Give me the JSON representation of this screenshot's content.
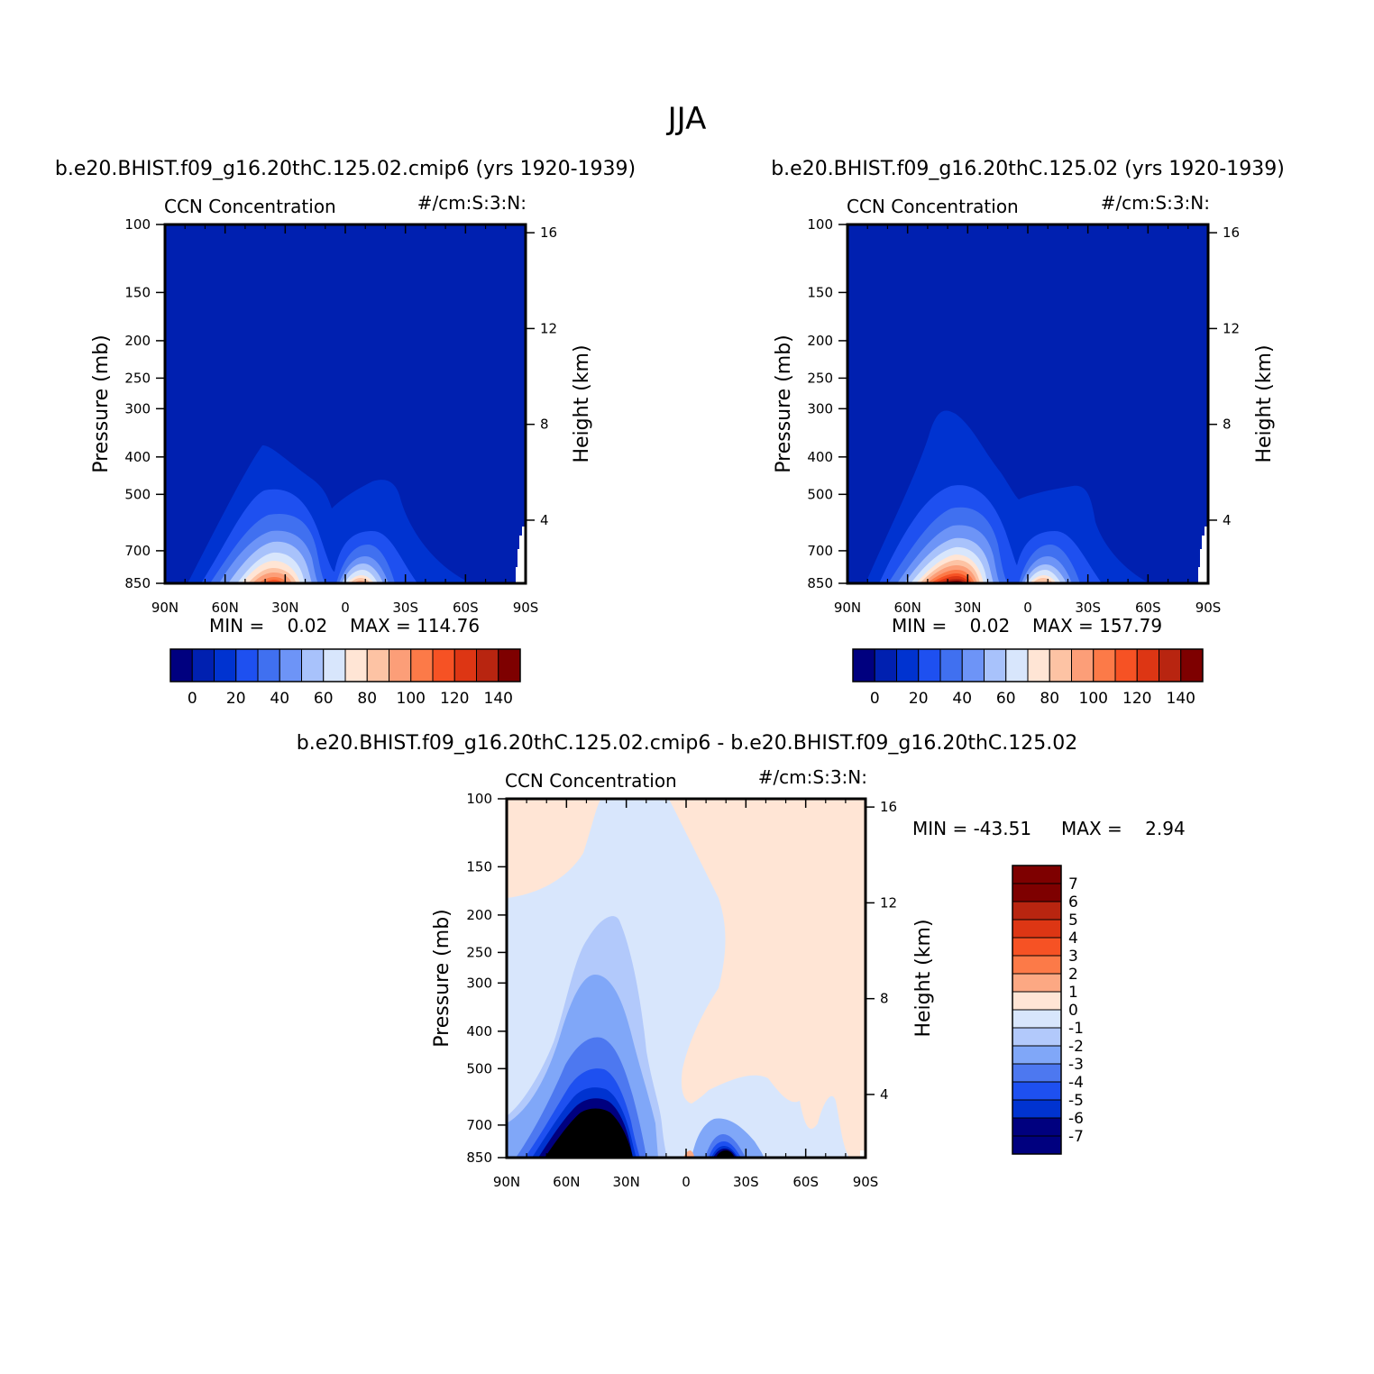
{
  "figure": {
    "title": "JJA"
  },
  "palettes": {
    "ccn": [
      "#00007f",
      "#0020b0",
      "#0033d0",
      "#1e50f0",
      "#4070f0",
      "#6d94f7",
      "#a8c2fb",
      "#d8e6fc",
      "#ffe5d5",
      "#fdc3a4",
      "#fc9e78",
      "#fc7a48",
      "#f65224",
      "#dd3614",
      "#b82510",
      "#7e0000"
    ],
    "diff": [
      "#7e0000",
      "#b82510",
      "#dd3614",
      "#f65224",
      "#fc7a48",
      "#fca883",
      "#ffe5d5",
      "#d8e6fc",
      "#b2c9fb",
      "#80a7f8",
      "#4d78f0",
      "#1e50f0",
      "#0033d0",
      "#00007f"
    ]
  },
  "chart_data": [
    {
      "type": "heatmap",
      "title": "b.e20.BHIST.f09_g16.20thC.125.02.cmip6 (yrs 1920-1939)",
      "left_label": "CCN Concentration",
      "right_label": "#/cm:S:3:N:",
      "xlabel": "",
      "ylabel": "Pressure (mb)",
      "ylabel_right": "Height (km)",
      "x_ticks": [
        "90N",
        "60N",
        "30N",
        "0",
        "30S",
        "60S",
        "90S"
      ],
      "y_ticks": [
        100,
        150,
        200,
        250,
        300,
        400,
        500,
        700,
        850
      ],
      "y_right_ticks": [
        16,
        12,
        8,
        4
      ],
      "y_scale": "log",
      "ylim": [
        100,
        850
      ],
      "min_text": "MIN =    0.02",
      "max_text": "MAX = 114.76",
      "min": 0.02,
      "max": 114.76,
      "colorbar": {
        "orientation": "horizontal",
        "tick_labels": [
          "0",
          "20",
          "40",
          "60",
          "80",
          "100",
          "120",
          "140"
        ]
      }
    },
    {
      "type": "heatmap",
      "title": "b.e20.BHIST.f09_g16.20thC.125.02 (yrs 1920-1939)",
      "left_label": "CCN Concentration",
      "right_label": "#/cm:S:3:N:",
      "xlabel": "",
      "ylabel": "Pressure (mb)",
      "ylabel_right": "Height (km)",
      "x_ticks": [
        "90N",
        "60N",
        "30N",
        "0",
        "30S",
        "60S",
        "90S"
      ],
      "y_ticks": [
        100,
        150,
        200,
        250,
        300,
        400,
        500,
        700,
        850
      ],
      "y_right_ticks": [
        16,
        12,
        8,
        4
      ],
      "y_scale": "log",
      "ylim": [
        100,
        850
      ],
      "min_text": "MIN =    0.02",
      "max_text": "MAX = 157.79",
      "min": 0.02,
      "max": 157.79,
      "colorbar": {
        "orientation": "horizontal",
        "tick_labels": [
          "0",
          "20",
          "40",
          "60",
          "80",
          "100",
          "120",
          "140"
        ]
      }
    },
    {
      "type": "heatmap",
      "title": "b.e20.BHIST.f09_g16.20thC.125.02.cmip6 - b.e20.BHIST.f09_g16.20thC.125.02",
      "left_label": "CCN Concentration",
      "right_label": "#/cm:S:3:N:",
      "xlabel": "",
      "ylabel": "Pressure (mb)",
      "ylabel_right": "Height (km)",
      "x_ticks": [
        "90N",
        "60N",
        "30N",
        "0",
        "30S",
        "60S",
        "90S"
      ],
      "y_ticks": [
        100,
        150,
        200,
        250,
        300,
        400,
        500,
        700,
        850
      ],
      "y_right_ticks": [
        16,
        12,
        8,
        4
      ],
      "y_scale": "log",
      "ylim": [
        100,
        850
      ],
      "min_text": "MIN = -43.51",
      "max_text": "MAX =    2.94",
      "min": -43.51,
      "max": 2.94,
      "colorbar": {
        "orientation": "vertical",
        "tick_labels": [
          "7",
          "6",
          "5",
          "4",
          "3",
          "2",
          "1",
          "0",
          "-1",
          "-2",
          "-3",
          "-4",
          "-5",
          "-6",
          "-7"
        ]
      }
    }
  ]
}
